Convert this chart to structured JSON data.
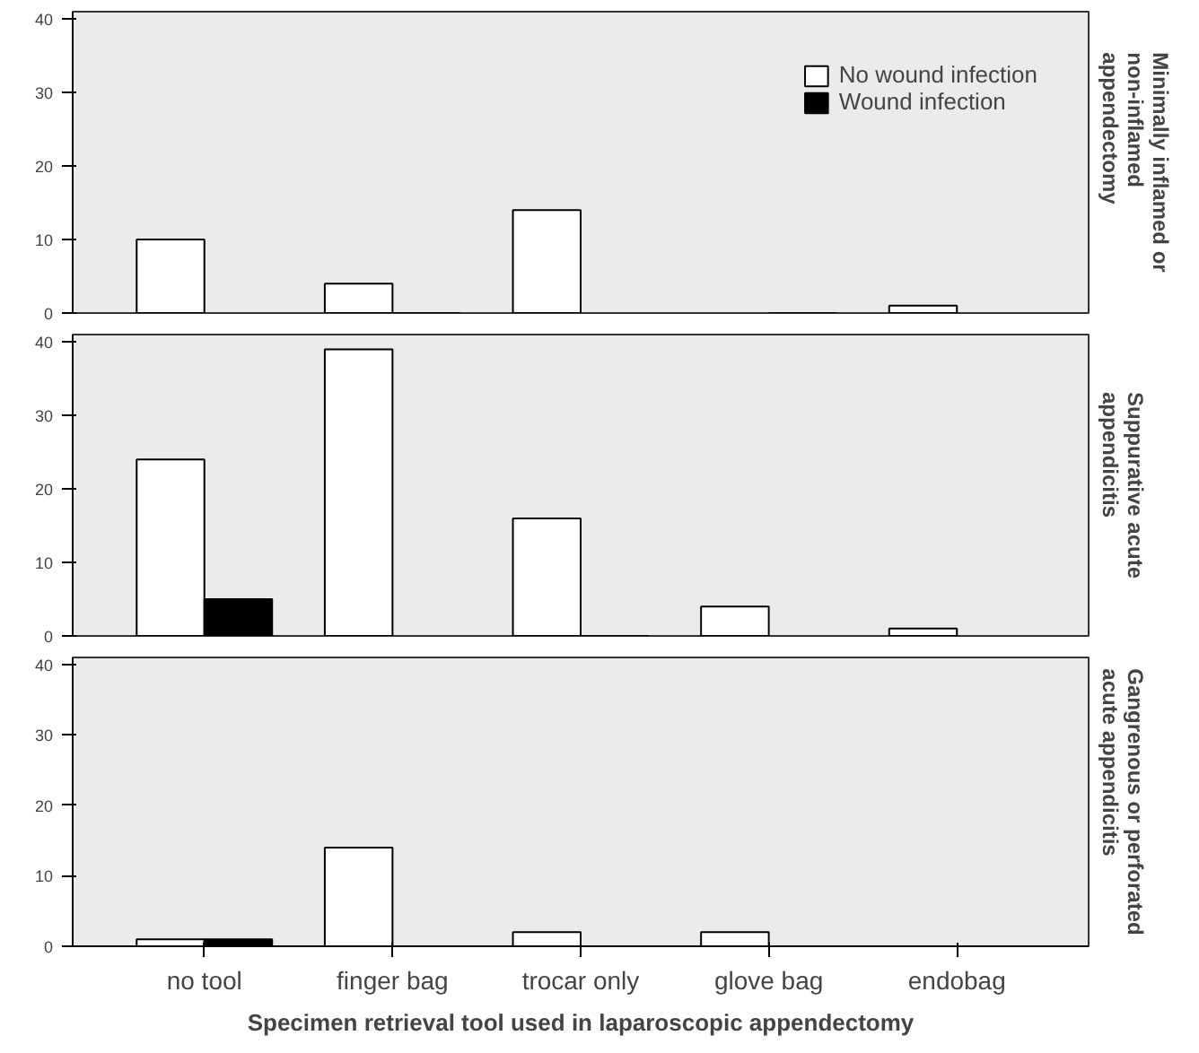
{
  "chart_data": [
    {
      "type": "bar",
      "title": "Minimally inflamed or non-inflamed appendectomy",
      "categories": [
        "no tool",
        "finger bag",
        "trocar only",
        "glove bag",
        "endobag"
      ],
      "ylim": [
        0,
        41
      ],
      "yticks": [
        0,
        10,
        20,
        30,
        40
      ],
      "grid": false,
      "legend": "top right",
      "tick_labels": "y",
      "series": [
        {
          "name": "No wound infection",
          "color": "#ffffff",
          "values": [
            10,
            4,
            14,
            null,
            1
          ]
        },
        {
          "name": "Wound infection",
          "color": "#000000",
          "values": [
            null,
            0,
            null,
            0,
            null
          ]
        }
      ]
    },
    {
      "type": "bar",
      "title": "Suppurative acute appendicitis",
      "categories": [
        "no tool",
        "finger bag",
        "trocar only",
        "glove bag",
        "endobag"
      ],
      "ylim": [
        0,
        41
      ],
      "yticks": [
        0,
        10,
        20,
        30,
        40
      ],
      "grid": false,
      "tick_labels": "y",
      "series": [
        {
          "color": "#ffffff",
          "values": [
            24,
            39,
            16,
            4,
            1
          ]
        },
        {
          "color": "#000000",
          "values": [
            5,
            null,
            0,
            null,
            null
          ]
        }
      ]
    },
    {
      "type": "bar",
      "title": "Gangrenous or perforated acute appendicitis",
      "xlabel": "Specimen retrieval tool used in laparoscopic appendectomy",
      "categories": [
        "no tool",
        "finger bag",
        "trocar only",
        "glove bag",
        "endobag"
      ],
      "ylim": [
        0,
        41
      ],
      "yticks": [
        0,
        10,
        20,
        30,
        40
      ],
      "grid": false,
      "series": [
        {
          "color": "#ffffff",
          "values": [
            1,
            14,
            2,
            2,
            null
          ]
        },
        {
          "color": "#000000",
          "values": [
            1,
            null,
            null,
            null,
            null
          ]
        }
      ]
    }
  ]
}
